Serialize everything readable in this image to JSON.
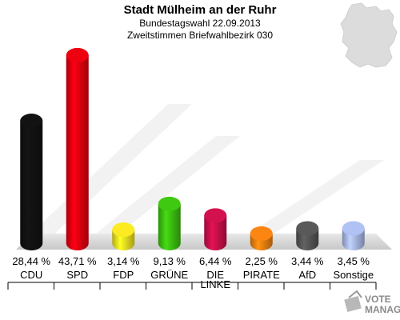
{
  "chart_data": {
    "type": "bar",
    "title": "Stadt Mülheim an der Ruhr",
    "subtitle": [
      "Bundestagswahl 22.09.2013",
      "Zweitstimmen Briefwahlbezirk 030"
    ],
    "categories": [
      "CDU",
      "SPD",
      "FDP",
      "GRÜNE",
      "DIE LINKE",
      "PIRATE",
      "AfD",
      "Sonstige"
    ],
    "category_lines": [
      [
        "CDU"
      ],
      [
        "SPD"
      ],
      [
        "FDP"
      ],
      [
        "GRÜNE"
      ],
      [
        "DIE",
        "LINKE"
      ],
      [
        "PIRATE"
      ],
      [
        "AfD"
      ],
      [
        "Sonstige"
      ]
    ],
    "values": [
      28.44,
      43.71,
      3.14,
      9.13,
      6.44,
      2.25,
      3.44,
      3.45
    ],
    "value_labels": [
      "28,44 %",
      "43,71 %",
      "3,14 %",
      "9,13 %",
      "6,44 %",
      "2,25 %",
      "3,44 %",
      "3,45 %"
    ],
    "colors": [
      "#111111",
      "#e3000f",
      "#f0e020",
      "#3cbf10",
      "#c8104a",
      "#f08010",
      "#555555",
      "#a8b8e8"
    ],
    "ylim": [
      0,
      45
    ],
    "xlabel": "",
    "ylabel": "",
    "grid": false,
    "legend": "none"
  },
  "branding": {
    "logo_text": [
      "VOTE",
      "MANAGER"
    ],
    "logo_icon": "voting-box-icon",
    "map_icon": "germany-map-icon"
  }
}
